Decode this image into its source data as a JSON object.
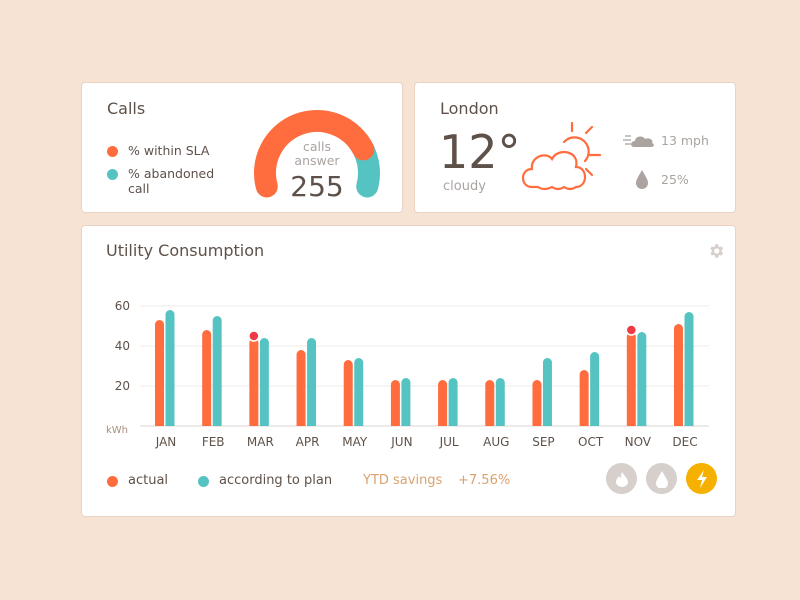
{
  "colors": {
    "actual": "#ff6d3f",
    "plan": "#56c3c3",
    "alert": "#ee3b45",
    "accent": "#f5b000",
    "background": "#f6e3d4"
  },
  "calls": {
    "title": "Calls",
    "legend": [
      {
        "label": "% within SLA",
        "color": "#ff6d3f"
      },
      {
        "label": "% abandoned call",
        "color": "#56c3c3"
      }
    ],
    "gauge": {
      "label_line1": "calls",
      "label_line2": "answer",
      "value": "255",
      "within_sla_fraction": 0.8
    }
  },
  "weather": {
    "city": "London",
    "temperature": "12°",
    "condition": "cloudy",
    "icon": "sun-cloud-icon",
    "wind": "13 mph",
    "humidity": "25%"
  },
  "utility": {
    "title": "Utility Consumption",
    "settings_icon": "gear-icon",
    "legend": [
      {
        "label": "actual"
      },
      {
        "label": "according to plan"
      }
    ],
    "ytd_label": "YTD savings",
    "ytd_value": "+7.56%",
    "toggles": [
      {
        "icon": "flame-icon",
        "active": false
      },
      {
        "icon": "drop-icon",
        "active": false
      },
      {
        "icon": "lightning-icon",
        "active": true
      }
    ]
  },
  "chart_data": {
    "type": "bar",
    "ylabel": "kWh",
    "ylim": [
      0,
      60
    ],
    "yticks": [
      "20",
      "40",
      "60"
    ],
    "grid": true,
    "categories": [
      "JAN",
      "FEB",
      "MAR",
      "APR",
      "MAY",
      "JUN",
      "JUL",
      "AUG",
      "SEP",
      "OCT",
      "NOV",
      "DEC"
    ],
    "series": [
      {
        "name": "actual",
        "values": [
          53,
          48,
          44,
          38,
          33,
          23,
          23,
          23,
          23,
          28,
          47,
          51
        ]
      },
      {
        "name": "according to plan",
        "values": [
          58,
          55,
          44,
          44,
          34,
          24,
          24,
          24,
          34,
          37,
          47,
          57
        ]
      }
    ],
    "alerts": [
      "MAR",
      "NOV"
    ]
  }
}
